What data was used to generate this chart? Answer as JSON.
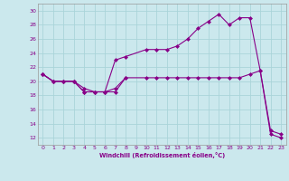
{
  "title": "",
  "xlabel": "Windchill (Refroidissement éolien,°C)",
  "bg_color": "#cbe8ed",
  "grid_color": "#aad4d9",
  "line_color": "#880088",
  "xlim": [
    -0.5,
    23.5
  ],
  "ylim": [
    11,
    31
  ],
  "yticks": [
    12,
    14,
    16,
    18,
    20,
    22,
    24,
    26,
    28,
    30
  ],
  "xticks": [
    0,
    1,
    2,
    3,
    4,
    5,
    6,
    7,
    8,
    9,
    10,
    11,
    12,
    13,
    14,
    15,
    16,
    17,
    18,
    19,
    20,
    21,
    22,
    23
  ],
  "line1_x": [
    0,
    1,
    2,
    3,
    4,
    5,
    6,
    7,
    8
  ],
  "line1_y": [
    21,
    20,
    20,
    20,
    19,
    18.5,
    18.5,
    19,
    20.5
  ],
  "line2_x": [
    0,
    1,
    2,
    3,
    4,
    5,
    6,
    7,
    8,
    10,
    11,
    12,
    13,
    14,
    15,
    16,
    17,
    18,
    19,
    20,
    21,
    22,
    23
  ],
  "line2_y": [
    21,
    20,
    20,
    20,
    18.5,
    18.5,
    18.5,
    23,
    23.5,
    24.5,
    24.5,
    24.5,
    25,
    26,
    27.5,
    28.5,
    29.5,
    28,
    29,
    29,
    21.5,
    13,
    12.5
  ],
  "line3_x": [
    0,
    1,
    2,
    3,
    4,
    5,
    6,
    7,
    8,
    10,
    11,
    12,
    13,
    14,
    15,
    16,
    17,
    18,
    19,
    20,
    21,
    22,
    23
  ],
  "line3_y": [
    21,
    20,
    20,
    20,
    18.5,
    18.5,
    18.5,
    18.5,
    20.5,
    20.5,
    20.5,
    20.5,
    20.5,
    20.5,
    20.5,
    20.5,
    20.5,
    20.5,
    20.5,
    21,
    21.5,
    12.5,
    12
  ]
}
